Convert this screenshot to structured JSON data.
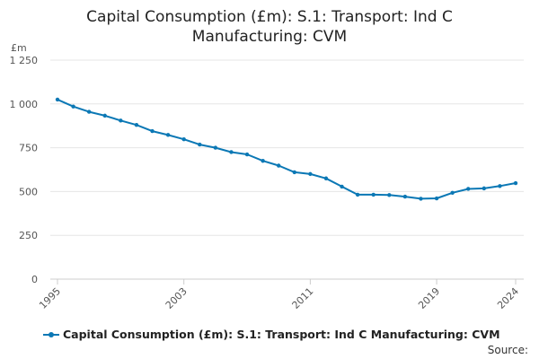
{
  "chart_data": {
    "type": "line",
    "title_lines": [
      "Capital Consumption (£m): S.1: Transport: Ind C",
      "Manufacturing: CVM"
    ],
    "ylabel": "£m",
    "ylim": [
      0,
      1250
    ],
    "yticks": [
      0,
      250,
      500,
      750,
      1000,
      1250
    ],
    "ytick_labels": [
      "0",
      "250",
      "500",
      "750",
      "1 000",
      "1 250"
    ],
    "xlim": [
      1995,
      2024
    ],
    "xticks": [
      1995,
      2003,
      2011,
      2019,
      2024
    ],
    "xtick_labels": [
      "1995",
      "2003",
      "2011",
      "2019",
      "2024"
    ],
    "grid": true,
    "colors": {
      "series": "#0b78b5",
      "grid": "#e6e6e6"
    },
    "series": [
      {
        "name": "Capital Consumption (£m): S.1: Transport: Ind C Manufacturing: CVM",
        "x": [
          1995,
          1996,
          1997,
          1998,
          1999,
          2000,
          2001,
          2002,
          2003,
          2004,
          2005,
          2006,
          2007,
          2008,
          2009,
          2010,
          2011,
          2012,
          2013,
          2014,
          2015,
          2016,
          2017,
          2018,
          2019,
          2020,
          2021,
          2022,
          2023,
          2024
        ],
        "values": [
          1025,
          985,
          955,
          933,
          905,
          880,
          845,
          823,
          798,
          768,
          750,
          725,
          712,
          675,
          648,
          610,
          600,
          575,
          528,
          482,
          482,
          480,
          471,
          459,
          461,
          493,
          515,
          518,
          531,
          548
        ]
      }
    ]
  },
  "legend": {
    "label": "Capital Consumption (£m): S.1: Transport: Ind C Manufacturing: CVM"
  },
  "source": {
    "label": "Source:"
  }
}
